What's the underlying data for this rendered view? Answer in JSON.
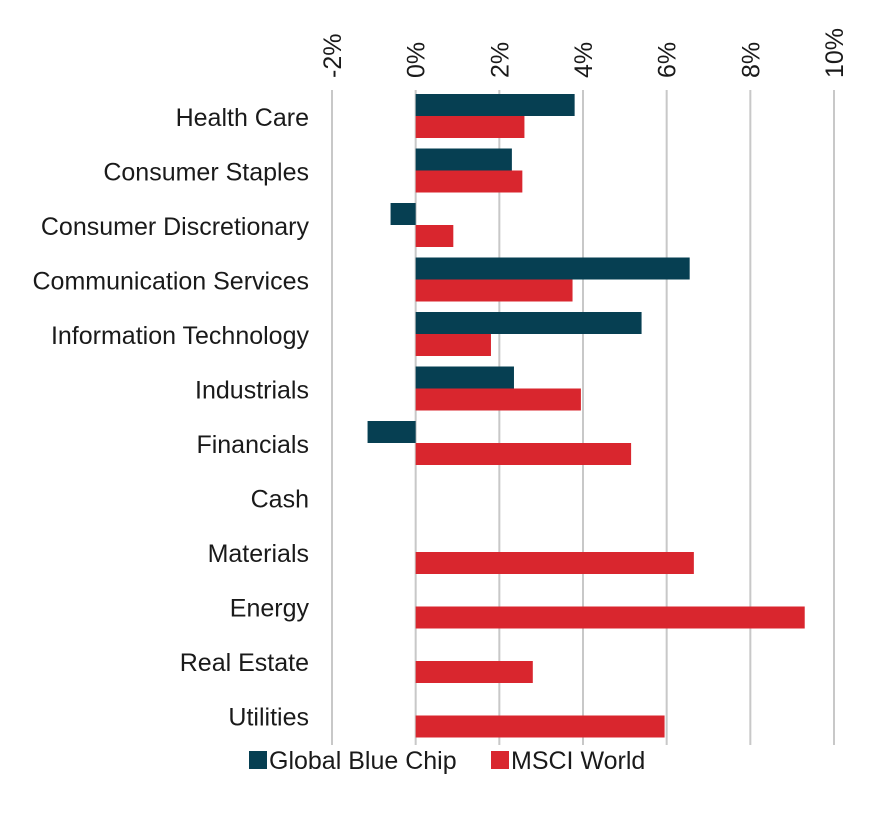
{
  "chart_data": {
    "type": "bar",
    "orientation": "horizontal",
    "categories": [
      "Health Care",
      "Consumer Staples",
      "Consumer Discretionary",
      "Communication Services",
      "Information Technology",
      "Industrials",
      "Financials",
      "Cash",
      "Materials",
      "Energy",
      "Real Estate",
      "Utilities"
    ],
    "series": [
      {
        "name": "Global Blue Chip",
        "color": "#063f52",
        "values": [
          3.8,
          2.3,
          -0.6,
          6.55,
          5.4,
          2.35,
          -1.15,
          null,
          null,
          null,
          null,
          null
        ]
      },
      {
        "name": "MSCI World",
        "color": "#d9262e",
        "values": [
          2.6,
          2.55,
          0.9,
          3.75,
          1.8,
          3.95,
          5.15,
          null,
          6.65,
          9.3,
          2.8,
          5.95
        ]
      }
    ],
    "xlim": [
      -2,
      10
    ],
    "xticks": [
      "-2%",
      "0%",
      "2%",
      "4%",
      "6%",
      "8%",
      "10%"
    ],
    "xtick_values": [
      -2,
      0,
      2,
      4,
      6,
      8,
      10
    ],
    "title": "",
    "xlabel": "",
    "ylabel": "",
    "grid": "vertical",
    "gridline_color": "#c8c8c8",
    "legend_position": "bottom"
  }
}
